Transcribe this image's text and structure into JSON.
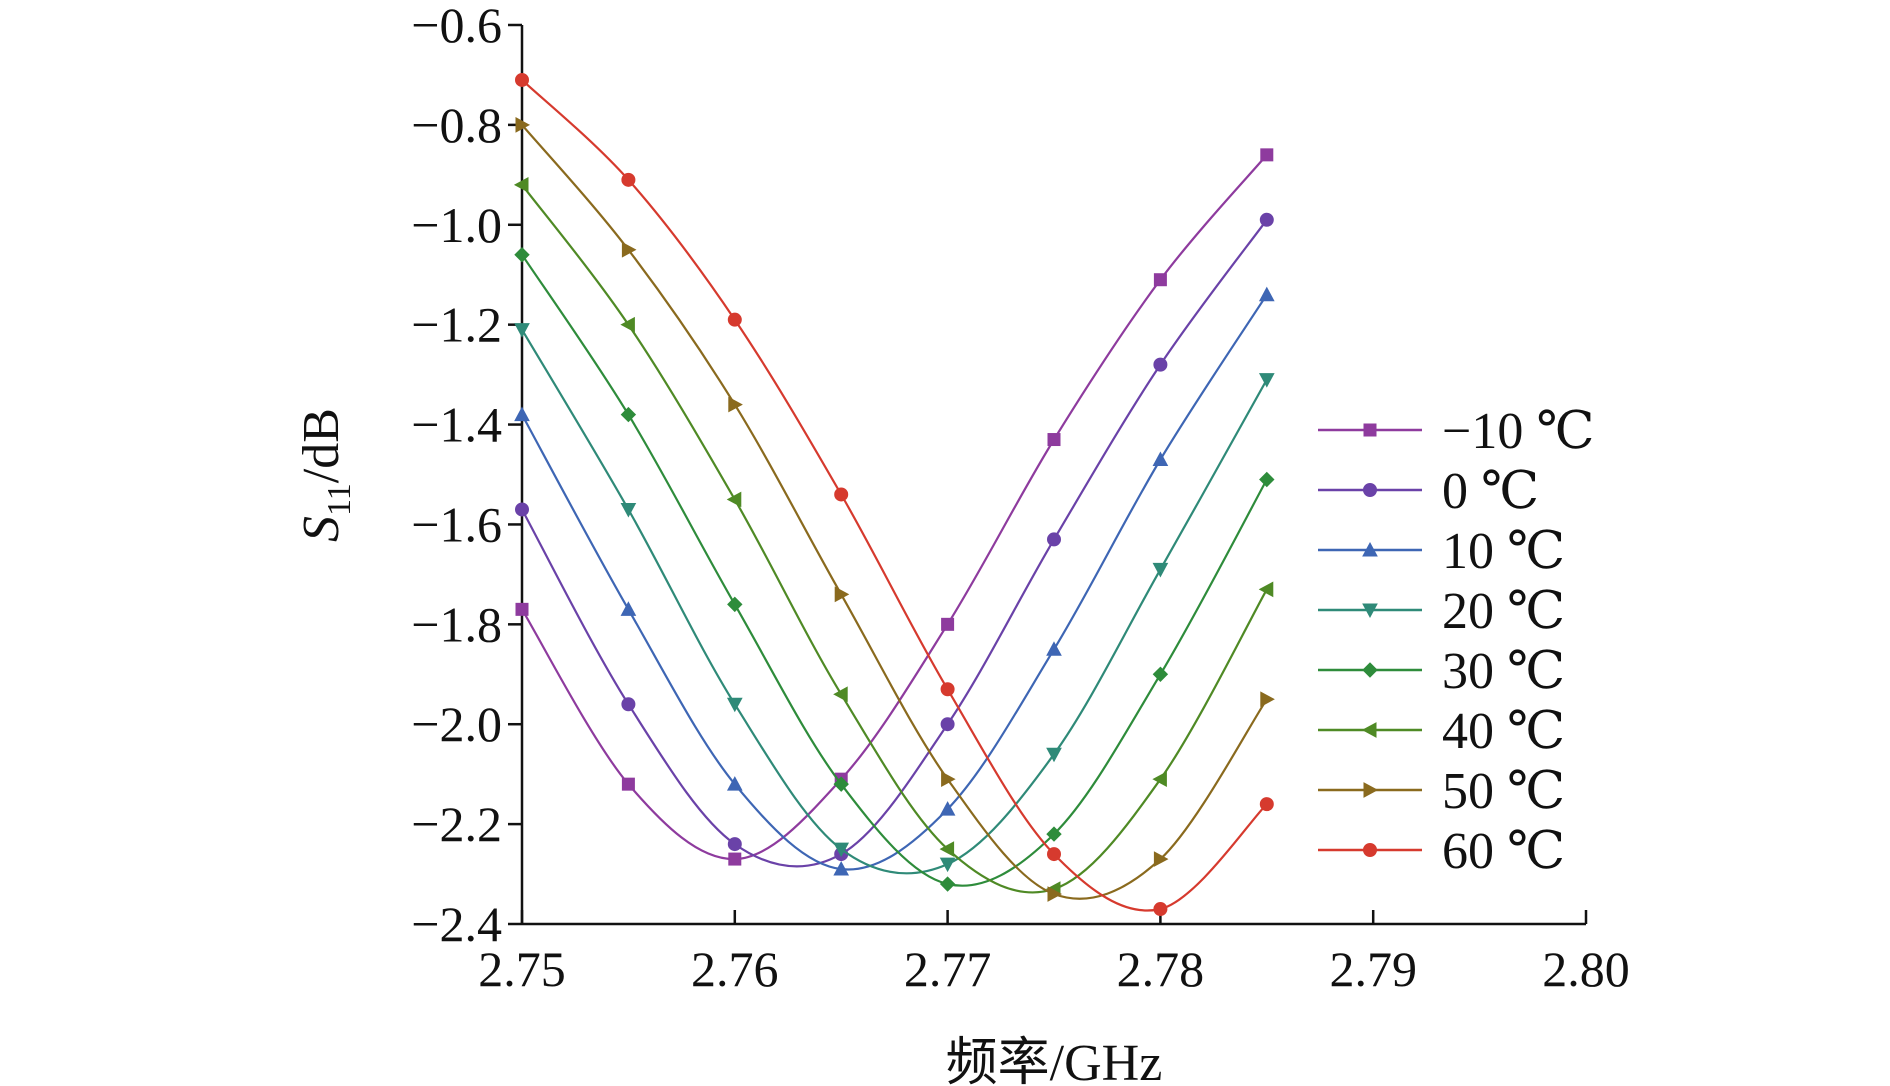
{
  "chart_data": {
    "type": "line",
    "title": "",
    "xlabel": "频率/GHz",
    "ylabel": {
      "var": "S",
      "sub": "11",
      "rest": "/dB"
    },
    "xlim": [
      2.75,
      2.8
    ],
    "ylim": [
      -2.4,
      -0.6
    ],
    "xticks": [
      2.75,
      2.76,
      2.77,
      2.78,
      2.79,
      2.8
    ],
    "xtick_labels": [
      "2.75",
      "2.76",
      "2.77",
      "2.78",
      "2.79",
      "2.80"
    ],
    "yticks": [
      -0.6,
      -0.8,
      -1.0,
      -1.2,
      -1.4,
      -1.6,
      -1.8,
      -2.0,
      -2.2,
      -2.4
    ],
    "ytick_labels": [
      "−0.6",
      "−0.8",
      "−1.0",
      "−1.2",
      "−1.4",
      "−1.6",
      "−1.8",
      "−2.0",
      "−2.2",
      "−2.4"
    ],
    "grid": false,
    "legend_position": "right",
    "x": [
      2.75,
      2.755,
      2.76,
      2.765,
      2.77,
      2.775,
      2.78,
      2.785
    ],
    "series": [
      {
        "name": "−10 ℃",
        "color": "#8e3b9e",
        "marker": "square",
        "values": [
          -1.77,
          -2.12,
          -2.27,
          -2.11,
          -1.8,
          -1.43,
          -1.11,
          -0.86
        ]
      },
      {
        "name": "0 ℃",
        "color": "#6a42a8",
        "marker": "circle",
        "values": [
          -1.57,
          -1.96,
          -2.24,
          -2.26,
          -2.0,
          -1.63,
          -1.28,
          -0.99
        ]
      },
      {
        "name": "10 ℃",
        "color": "#3e66b4",
        "marker": "triangle-up",
        "values": [
          -1.38,
          -1.77,
          -2.12,
          -2.29,
          -2.17,
          -1.85,
          -1.47,
          -1.14
        ]
      },
      {
        "name": "20 ℃",
        "color": "#2f8a78",
        "marker": "triangle-down",
        "values": [
          -1.21,
          -1.57,
          -1.96,
          -2.25,
          -2.28,
          -2.06,
          -1.69,
          -1.31
        ]
      },
      {
        "name": "30 ℃",
        "color": "#2e8c3b",
        "marker": "diamond",
        "values": [
          -1.06,
          -1.38,
          -1.76,
          -2.12,
          -2.32,
          -2.22,
          -1.9,
          -1.51
        ]
      },
      {
        "name": "40 ℃",
        "color": "#4f8a25",
        "marker": "triangle-left",
        "values": [
          -0.92,
          -1.2,
          -1.55,
          -1.94,
          -2.25,
          -2.33,
          -2.11,
          -1.73
        ]
      },
      {
        "name": "50 ℃",
        "color": "#8a6a1e",
        "marker": "triangle-right",
        "values": [
          -0.8,
          -1.05,
          -1.36,
          -1.74,
          -2.11,
          -2.34,
          -2.27,
          -1.95
        ]
      },
      {
        "name": "60 ℃",
        "color": "#d63a2e",
        "marker": "circle",
        "values": [
          -0.71,
          -0.91,
          -1.19,
          -1.54,
          -1.93,
          -2.26,
          -2.37,
          -2.16
        ]
      }
    ]
  }
}
